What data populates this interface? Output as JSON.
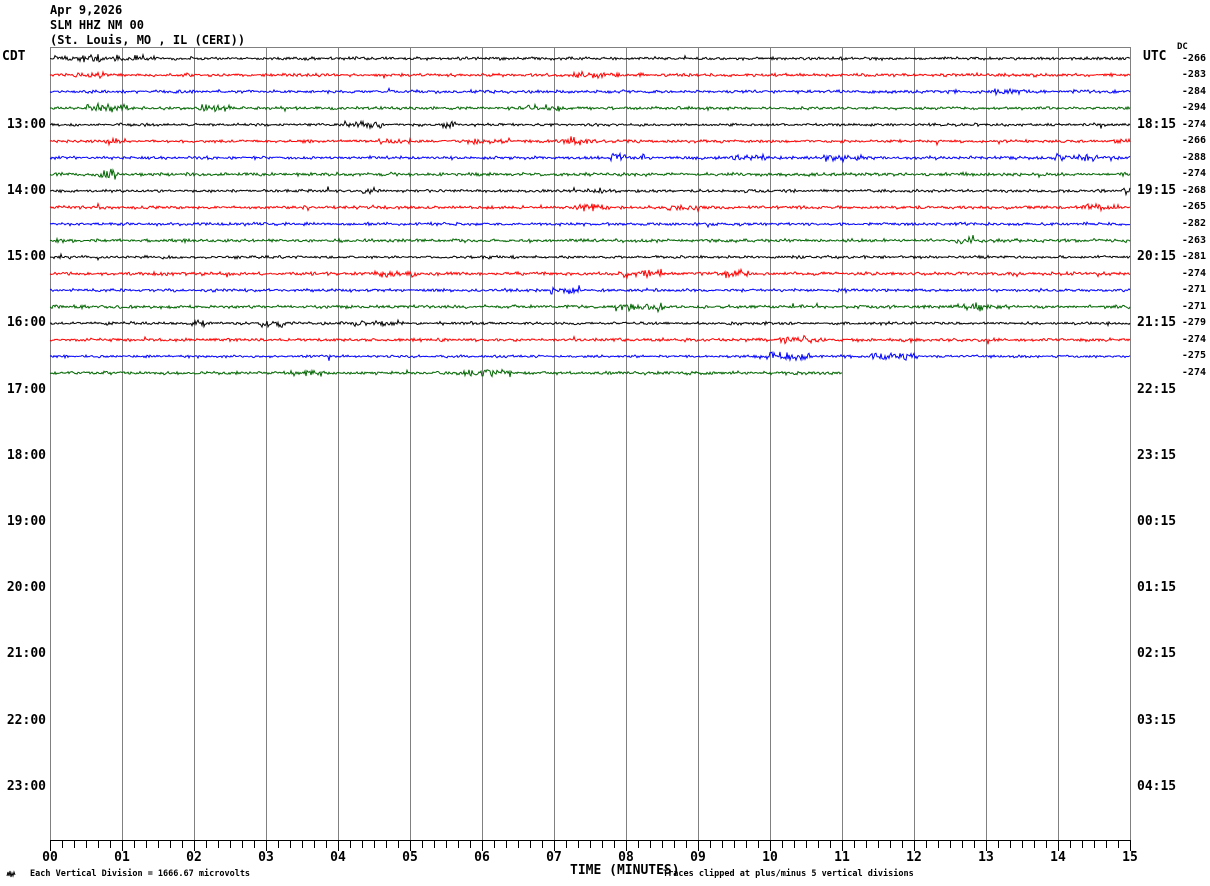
{
  "header": {
    "date": "Apr 9,2026",
    "station": "SLM HHZ NM 00",
    "location": "(St. Louis, MO , IL (CERI))"
  },
  "axis": {
    "left_tz_label": "CDT",
    "right_tz_label": "UTC",
    "dc_header": "DC",
    "x_title": "TIME (MINUTES)",
    "x_tick_labels": [
      "00",
      "01",
      "02",
      "03",
      "04",
      "05",
      "06",
      "07",
      "08",
      "09",
      "10",
      "11",
      "12",
      "13",
      "14",
      "15"
    ],
    "left_hour_labels": [
      "13:00",
      "14:00",
      "15:00",
      "16:00",
      "17:00",
      "18:00",
      "19:00",
      "20:00",
      "21:00",
      "22:00",
      "23:00"
    ],
    "right_hour_labels": [
      "18:15",
      "19:15",
      "20:15",
      "21:15",
      "22:15",
      "23:15",
      "00:15",
      "01:15",
      "02:15",
      "03:15",
      "04:15"
    ]
  },
  "footer": {
    "scale_note": "Each Vertical Division = 1666.67 microvolts",
    "clip_note": "Traces clipped at plus/minus 5 vertical divisions",
    "corner_mark": "mini-waveform-icon"
  },
  "colors": {
    "trace_black": "#000000",
    "trace_red": "#ff0000",
    "trace_blue": "#0000ff",
    "trace_green": "#006600",
    "grid": "#808080",
    "text": "#000000"
  },
  "chart_data": {
    "type": "line",
    "title": "SLM HHZ NM 00 (St. Louis, MO , IL (CERI)) helicorder - Apr 9,2026",
    "xlabel": "TIME (MINUTES)",
    "x_range_minutes": [
      0,
      15
    ],
    "minutes_per_row": 15,
    "rows_per_hour": 4,
    "minor_tick_seconds": 10,
    "grid": "vertical minute lines, gray",
    "traces": [
      {
        "start_cdt": "12:00",
        "color": "black",
        "dc": -266,
        "data_minutes": 15
      },
      {
        "start_cdt": "12:15",
        "color": "red",
        "dc": -283,
        "data_minutes": 15
      },
      {
        "start_cdt": "12:30",
        "color": "blue",
        "dc": -284,
        "data_minutes": 15
      },
      {
        "start_cdt": "12:45",
        "color": "green",
        "dc": -294,
        "data_minutes": 15
      },
      {
        "start_cdt": "13:00",
        "color": "black",
        "dc": -274,
        "data_minutes": 15
      },
      {
        "start_cdt": "13:15",
        "color": "red",
        "dc": -266,
        "data_minutes": 15
      },
      {
        "start_cdt": "13:30",
        "color": "blue",
        "dc": -288,
        "data_minutes": 15
      },
      {
        "start_cdt": "13:45",
        "color": "green",
        "dc": -274,
        "data_minutes": 15
      },
      {
        "start_cdt": "14:00",
        "color": "black",
        "dc": -268,
        "data_minutes": 15
      },
      {
        "start_cdt": "14:15",
        "color": "red",
        "dc": -265,
        "data_minutes": 15
      },
      {
        "start_cdt": "14:30",
        "color": "blue",
        "dc": -282,
        "data_minutes": 15
      },
      {
        "start_cdt": "14:45",
        "color": "green",
        "dc": -263,
        "data_minutes": 15
      },
      {
        "start_cdt": "15:00",
        "color": "black",
        "dc": -281,
        "data_minutes": 15
      },
      {
        "start_cdt": "15:15",
        "color": "red",
        "dc": -274,
        "data_minutes": 15
      },
      {
        "start_cdt": "15:30",
        "color": "blue",
        "dc": -271,
        "data_minutes": 15
      },
      {
        "start_cdt": "15:45",
        "color": "green",
        "dc": -271,
        "data_minutes": 15
      },
      {
        "start_cdt": "16:00",
        "color": "black",
        "dc": -279,
        "data_minutes": 15
      },
      {
        "start_cdt": "16:15",
        "color": "red",
        "dc": -274,
        "data_minutes": 15
      },
      {
        "start_cdt": "16:30",
        "color": "blue",
        "dc": -275,
        "data_minutes": 15
      },
      {
        "start_cdt": "16:45",
        "color": "green",
        "dc": -274,
        "data_minutes": 11
      }
    ]
  }
}
